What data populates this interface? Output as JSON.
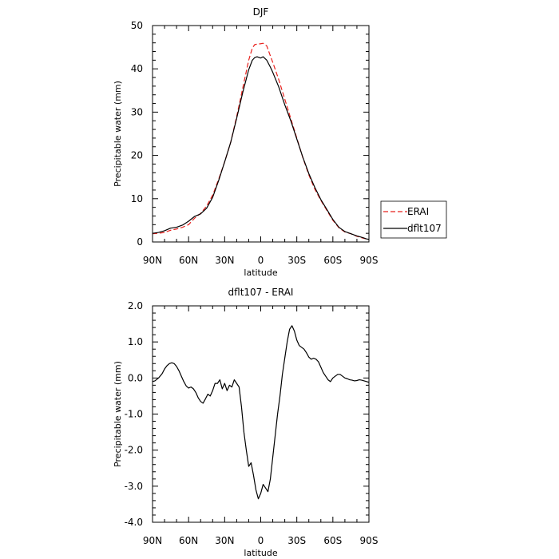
{
  "chart_data": [
    {
      "type": "line",
      "title": "DJF",
      "xlabel": "latitude",
      "ylabel": "Precipitable water (mm)",
      "xlim": [
        90,
        -90
      ],
      "ylim": [
        0,
        50
      ],
      "x_ticks": [
        90,
        60,
        30,
        0,
        -30,
        -60,
        -90
      ],
      "x_tick_labels": [
        "90N",
        "60N",
        "30N",
        "0",
        "30S",
        "60S",
        "90S"
      ],
      "y_ticks": [
        0,
        10,
        20,
        30,
        40,
        50
      ],
      "y_tick_labels": [
        "0",
        "10",
        "20",
        "30",
        "40",
        "50"
      ],
      "legend": "outside-right",
      "series": [
        {
          "name": "ERAI",
          "color": "#e8201c",
          "dash": "dashed",
          "x": [
            90,
            85,
            80,
            75,
            70,
            65,
            60,
            55,
            50,
            45,
            40,
            35,
            30,
            25,
            20,
            15,
            10,
            7,
            5,
            3,
            0,
            -2,
            -5,
            -8,
            -10,
            -15,
            -20,
            -25,
            -30,
            -35,
            -40,
            -45,
            -50,
            -55,
            -60,
            -65,
            -70,
            -75,
            -80,
            -85,
            -88,
            -90
          ],
          "values": [
            1.9,
            2.0,
            2.2,
            2.7,
            3.0,
            3.4,
            4.0,
            5.5,
            6.6,
            8.3,
            10.8,
            14.5,
            18.5,
            23.0,
            29.0,
            35.5,
            42.0,
            44.8,
            45.6,
            45.7,
            45.8,
            45.9,
            45.3,
            43.0,
            41.5,
            37.5,
            33.0,
            28.5,
            24.0,
            19.5,
            15.5,
            12.2,
            9.6,
            7.3,
            5.0,
            3.3,
            2.3,
            1.9,
            1.3,
            0.9,
            0.7,
            0.6
          ]
        },
        {
          "name": "dflt107",
          "color": "#000000",
          "dash": "solid",
          "x": [
            90,
            85,
            80,
            75,
            70,
            65,
            60,
            55,
            50,
            45,
            40,
            35,
            30,
            25,
            20,
            15,
            10,
            7,
            5,
            3,
            0,
            -2,
            -5,
            -8,
            -10,
            -15,
            -20,
            -25,
            -30,
            -35,
            -40,
            -45,
            -50,
            -55,
            -60,
            -65,
            -70,
            -75,
            -80,
            -85,
            -88,
            -90
          ],
          "values": [
            2.0,
            2.2,
            2.6,
            3.2,
            3.4,
            3.9,
            4.8,
            5.9,
            6.5,
            7.8,
            10.3,
            14.2,
            18.5,
            23.0,
            28.6,
            34.5,
            39.8,
            42.0,
            42.6,
            42.8,
            42.5,
            42.8,
            42.0,
            40.4,
            39.2,
            35.8,
            31.7,
            28.0,
            23.8,
            19.6,
            15.8,
            12.6,
            9.8,
            7.5,
            5.2,
            3.4,
            2.4,
            1.9,
            1.4,
            1.0,
            0.7,
            0.6
          ]
        }
      ]
    },
    {
      "type": "line",
      "title": "dflt107 - ERAI",
      "xlabel": "latitude",
      "ylabel": "Precipitable water (mm)",
      "xlim": [
        90,
        -90
      ],
      "ylim": [
        -4.0,
        2.0
      ],
      "x_ticks": [
        90,
        60,
        30,
        0,
        -30,
        -60,
        -90
      ],
      "x_tick_labels": [
        "90N",
        "60N",
        "30N",
        "0",
        "30S",
        "60S",
        "90S"
      ],
      "y_ticks": [
        -4,
        -3,
        -2,
        -1,
        0,
        1,
        2
      ],
      "y_tick_labels": [
        "-4.0",
        "-3.0",
        "-2.0",
        "-1.0",
        "0.0",
        "1.0",
        "2.0"
      ],
      "series": [
        {
          "name": "",
          "color": "#000000",
          "dash": "solid",
          "x": [
            90,
            88,
            85,
            82,
            80,
            78,
            76,
            74,
            72,
            70,
            68,
            66,
            64,
            62,
            60,
            58,
            56,
            54,
            52,
            50,
            48,
            46,
            44,
            42,
            40,
            38,
            36,
            34,
            32,
            30,
            28,
            26,
            24,
            22,
            20,
            18,
            16,
            14,
            12,
            10,
            8,
            6,
            4,
            2,
            0,
            -2,
            -4,
            -6,
            -8,
            -10,
            -12,
            -14,
            -16,
            -18,
            -20,
            -22,
            -24,
            -26,
            -28,
            -30,
            -32,
            -34,
            -36,
            -38,
            -40,
            -42,
            -44,
            -46,
            -48,
            -50,
            -52,
            -54,
            -56,
            -58,
            -60,
            -62,
            -64,
            -66,
            -68,
            -70,
            -72,
            -74,
            -76,
            -78,
            -80,
            -82,
            -84,
            -86,
            -88,
            -90
          ],
          "values": [
            -0.1,
            -0.08,
            0.0,
            0.12,
            0.25,
            0.34,
            0.4,
            0.42,
            0.4,
            0.32,
            0.2,
            0.05,
            -0.1,
            -0.22,
            -0.28,
            -0.25,
            -0.3,
            -0.4,
            -0.55,
            -0.65,
            -0.7,
            -0.58,
            -0.45,
            -0.5,
            -0.35,
            -0.15,
            -0.15,
            -0.05,
            -0.3,
            -0.15,
            -0.35,
            -0.2,
            -0.25,
            -0.05,
            -0.15,
            -0.25,
            -0.8,
            -1.5,
            -2.0,
            -2.45,
            -2.35,
            -2.7,
            -3.1,
            -3.35,
            -3.2,
            -2.95,
            -3.05,
            -3.15,
            -2.8,
            -2.2,
            -1.6,
            -1.0,
            -0.5,
            0.1,
            0.55,
            1.0,
            1.35,
            1.45,
            1.3,
            1.05,
            0.9,
            0.85,
            0.8,
            0.7,
            0.58,
            0.52,
            0.55,
            0.52,
            0.45,
            0.3,
            0.15,
            0.05,
            -0.05,
            -0.1,
            0.0,
            0.05,
            0.1,
            0.1,
            0.05,
            0.0,
            -0.02,
            -0.05,
            -0.06,
            -0.08,
            -0.07,
            -0.05,
            -0.06,
            -0.08,
            -0.1,
            -0.12
          ]
        }
      ]
    }
  ]
}
